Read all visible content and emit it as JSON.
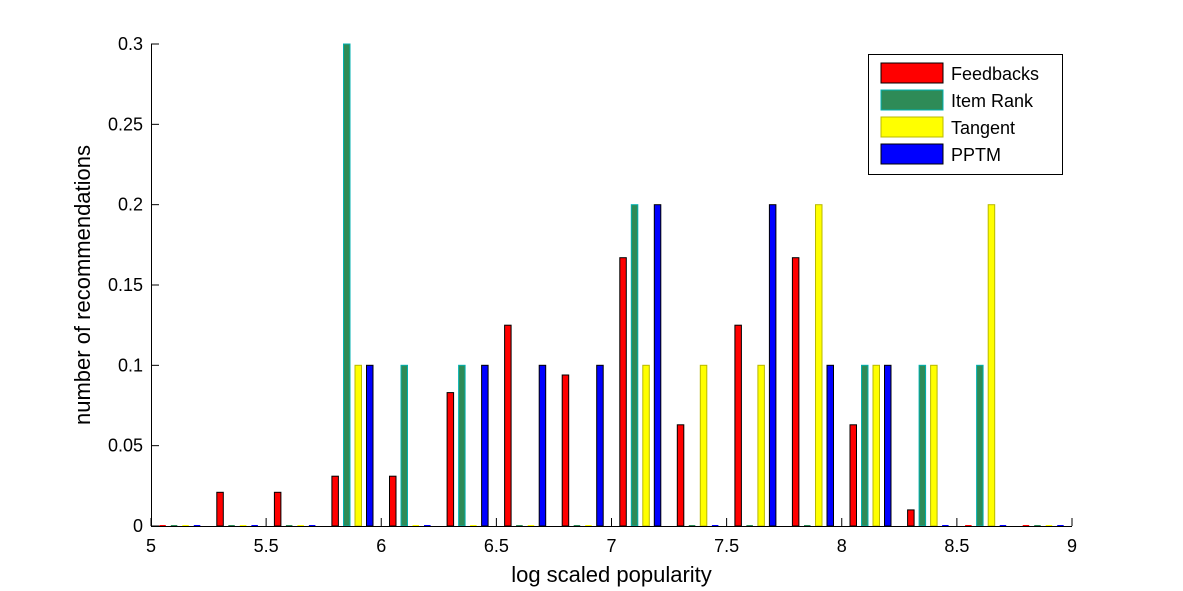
{
  "chart_data": {
    "type": "bar",
    "title": "",
    "xlabel": "log scaled popularity",
    "ylabel": "number of recommendations",
    "xlim": [
      5,
      9
    ],
    "ylim": [
      0,
      0.3
    ],
    "xticks": [
      "5",
      "5.5",
      "6",
      "6.5",
      "7",
      "7.5",
      "8",
      "8.5",
      "9"
    ],
    "yticks": [
      "0",
      "0.05",
      "0.1",
      "0.15",
      "0.2",
      "0.25",
      "0.3"
    ],
    "xtick_values": [
      5,
      5.5,
      6,
      6.5,
      7,
      7.5,
      8,
      8.5,
      9
    ],
    "ytick_values": [
      0,
      0.05,
      0.1,
      0.15,
      0.2,
      0.25,
      0.3
    ],
    "bins": [
      5.125,
      5.375,
      5.625,
      5.875,
      6.125,
      6.375,
      6.625,
      6.875,
      7.125,
      7.375,
      7.625,
      7.875,
      8.125,
      8.375,
      8.625,
      8.875
    ],
    "legend_position": "top-right",
    "series": [
      {
        "name": "Feedbacks",
        "color": "#ff0000",
        "edge": "#000000",
        "values": [
          0,
          0.021,
          0.021,
          0.031,
          0.031,
          0.083,
          0.125,
          0.094,
          0.167,
          0.063,
          0.125,
          0.167,
          0.063,
          0.01,
          0,
          0
        ]
      },
      {
        "name": "Item Rank",
        "color": "#2e8b57",
        "edge": "#00b0b0",
        "values": [
          0,
          0,
          0,
          0.3,
          0.1,
          0.1,
          0,
          0,
          0.2,
          0,
          0,
          0,
          0.1,
          0.1,
          0.1,
          0
        ]
      },
      {
        "name": "Tangent",
        "color": "#ffff00",
        "edge": "#b8b800",
        "values": [
          0,
          0,
          0,
          0.1,
          0,
          0,
          0,
          0,
          0.1,
          0.1,
          0.1,
          0.2,
          0.1,
          0.1,
          0.2,
          0
        ]
      },
      {
        "name": "PPTM",
        "color": "#0000ff",
        "edge": "#000000",
        "values": [
          0,
          0,
          0,
          0.1,
          0,
          0.1,
          0.1,
          0.1,
          0.2,
          0,
          0.2,
          0.1,
          0.1,
          0,
          0,
          0
        ]
      }
    ]
  }
}
